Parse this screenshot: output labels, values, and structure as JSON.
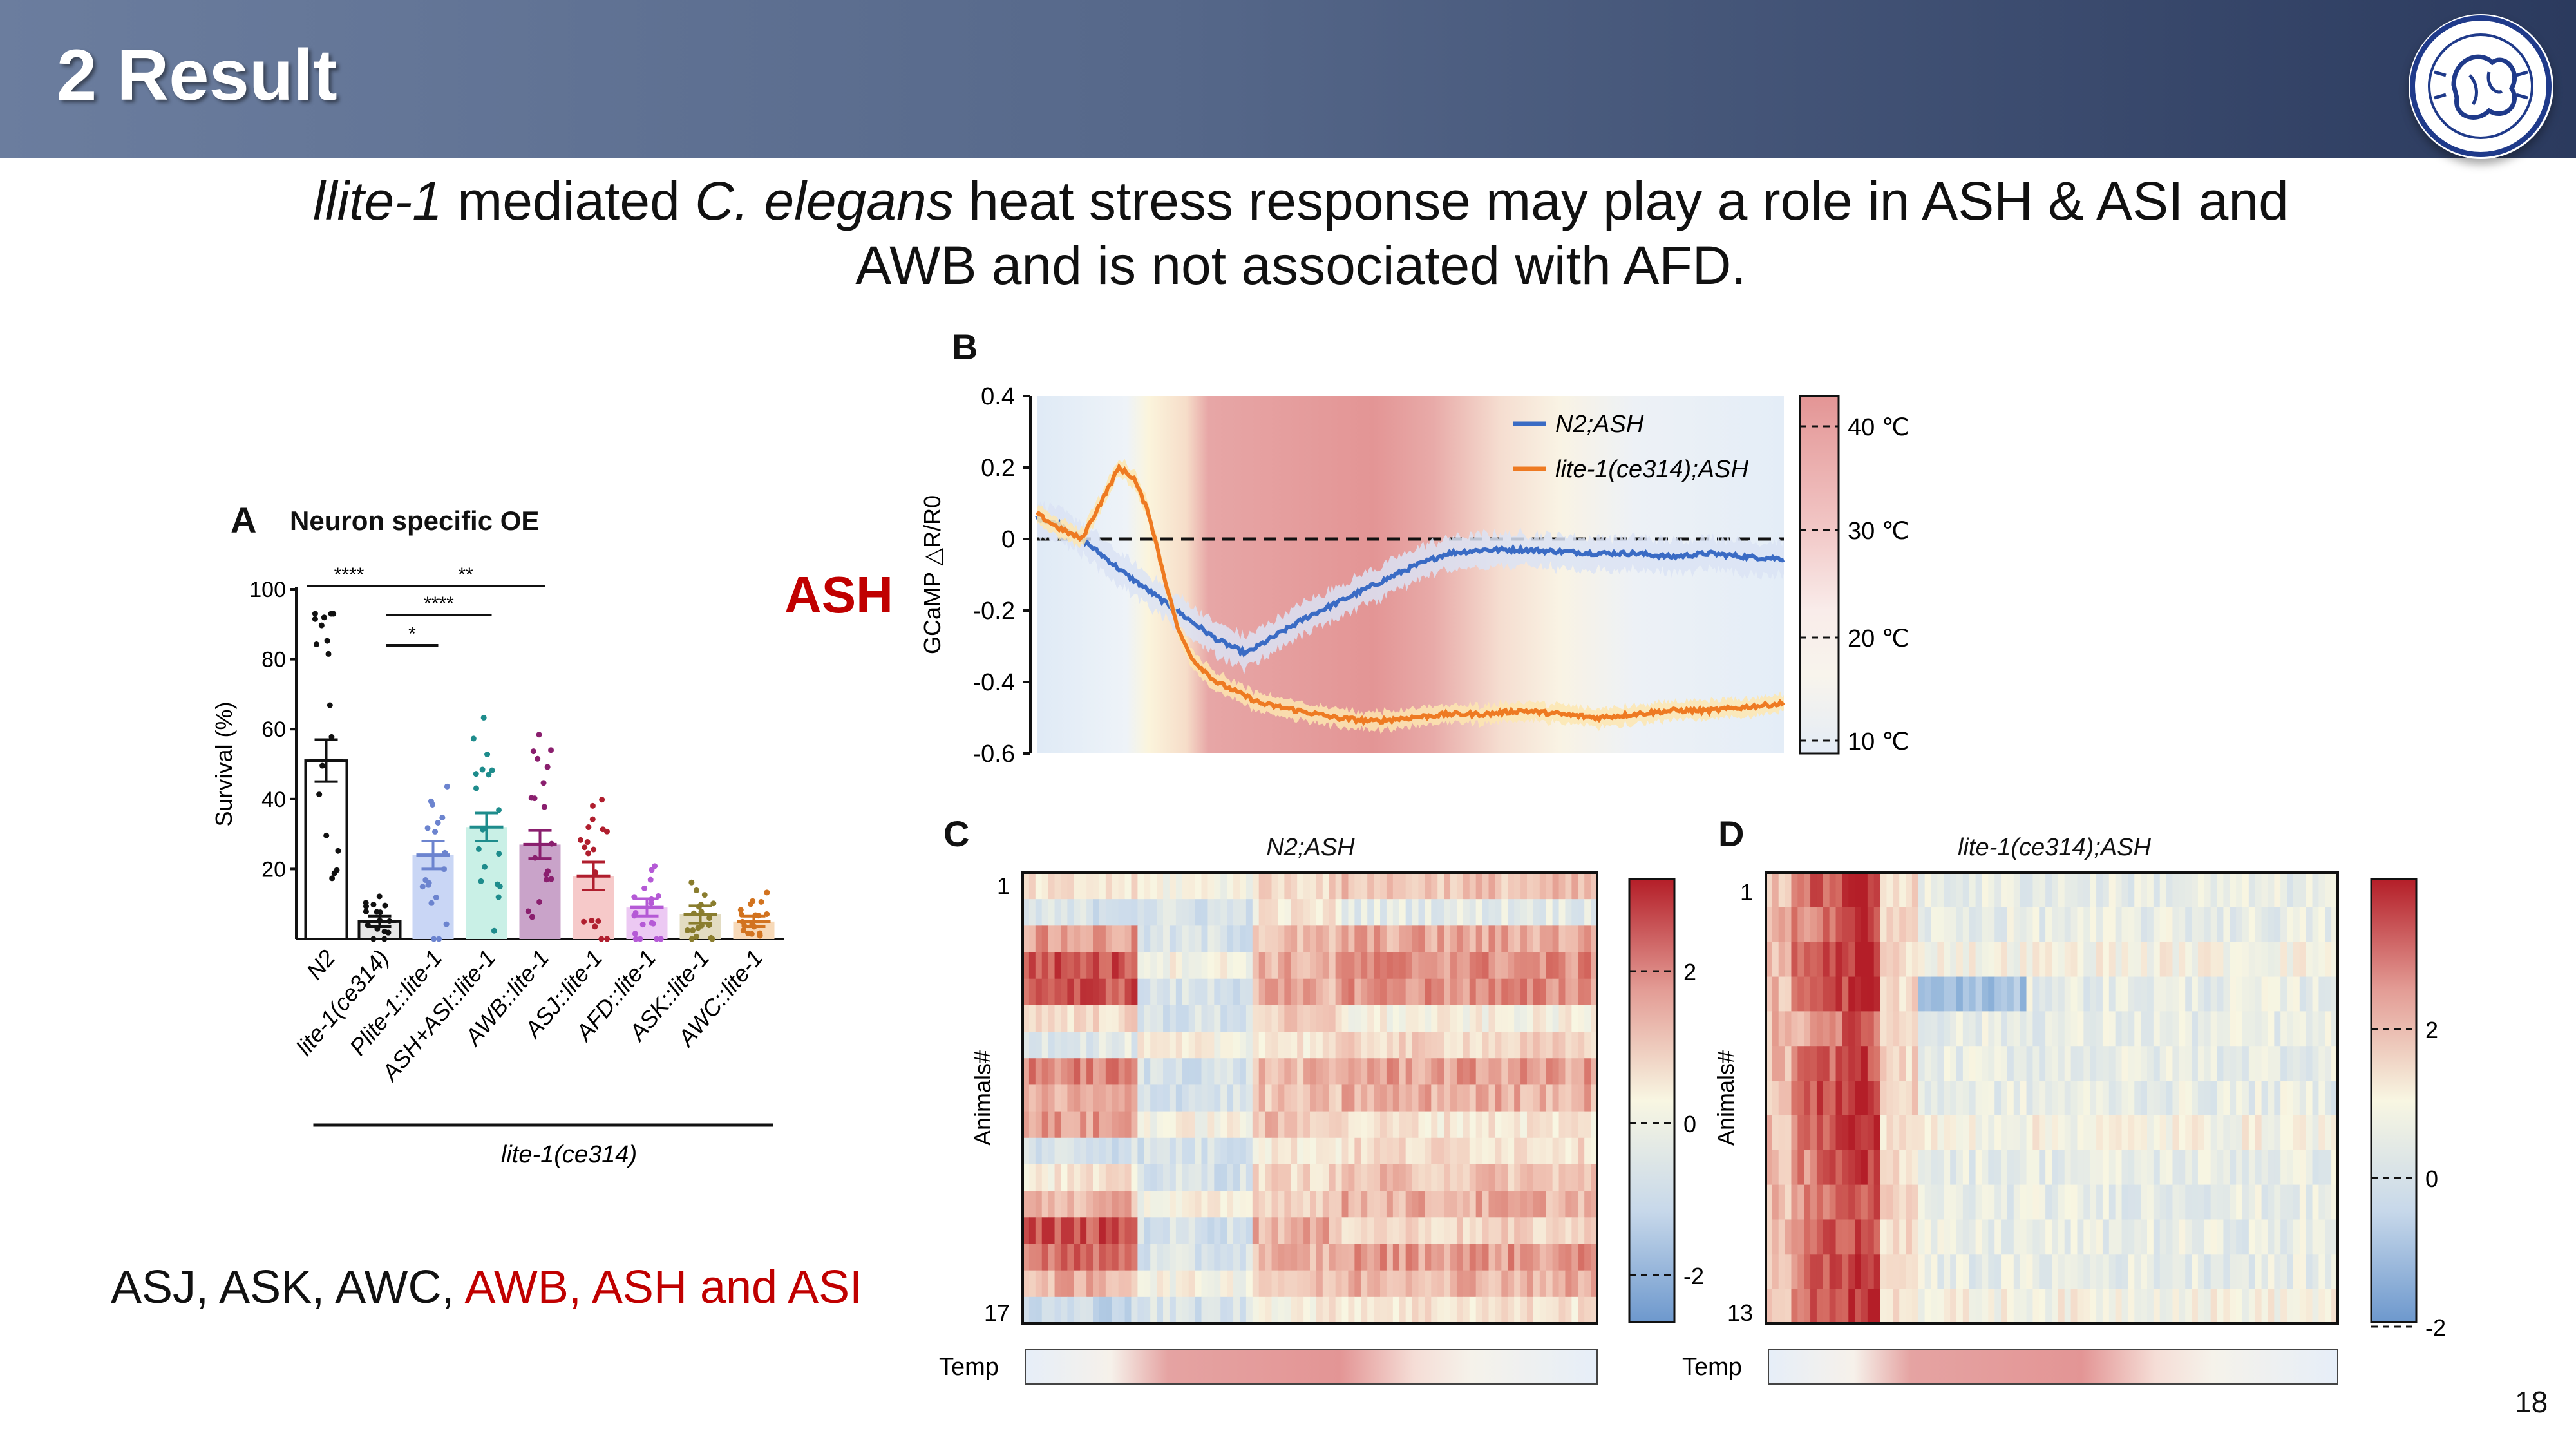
{
  "header": {
    "title": "2 Result"
  },
  "subtitle": {
    "part1": "llite-1",
    "part2": " mediated ",
    "part3": "C. elegans",
    "part4": " heat stress response may play a role in ASH & ASI and",
    "line2": "AWB and is not associated with AFD."
  },
  "side_label": "ASH",
  "bottom_note": {
    "black": "ASJ, ASK, AWC, ",
    "red": "AWB, ASH and ASI"
  },
  "page_number": "18",
  "colors": {
    "header_dark": "#2b3a5e",
    "header_light": "#6b7d9e",
    "red_text": "#c00000",
    "n2_blue": "#3a6bc4",
    "lite_orange": "#ee7a22"
  },
  "chart_data": [
    {
      "panel": "A",
      "type": "bar",
      "title": "Neuron specific OE",
      "ylabel": "Survival (%)",
      "ylim": [
        0,
        100
      ],
      "yticks": [
        "20",
        "40",
        "60",
        "80",
        "100"
      ],
      "categories": [
        "N2",
        "lite-1(ce314)",
        "Plite-1::lite-1",
        "ASH+ASI::lite-1",
        "AWB::lite-1",
        "ASJ::lite-1",
        "AFD::lite-1",
        "ASK::lite-1",
        "AWC::lite-1"
      ],
      "values": [
        51,
        5,
        24,
        32,
        27,
        18,
        9,
        7,
        5
      ],
      "errors": [
        6,
        1.5,
        4,
        4,
        4,
        4,
        2.5,
        2.5,
        1.5
      ],
      "bar_colors": [
        "#ffffff",
        "#e6e6e6",
        "#c9d6f5",
        "#c9f0e6",
        "#c9a3c9",
        "#f6c9c9",
        "#ecc9f3",
        "#e3dcc2",
        "#f7d9b8"
      ],
      "point_colors": [
        "#111111",
        "#111111",
        "#6c84cf",
        "#1e8c8c",
        "#8a1f6e",
        "#b01e2e",
        "#b55ad6",
        "#8a7d2e",
        "#d2731f"
      ],
      "group_label": "lite-1(ce314)",
      "significance": [
        {
          "from": "N2",
          "to": "lite-1(ce314)",
          "label": "****"
        },
        {
          "from": "lite-1(ce314)",
          "to": "AWB::lite-1",
          "label": "**"
        },
        {
          "from": "lite-1(ce314)",
          "to": "ASH+ASI::lite-1",
          "label": "****"
        },
        {
          "from": "lite-1(ce314)",
          "to": "Plite-1::lite-1",
          "label": "*"
        }
      ]
    },
    {
      "panel": "B",
      "type": "line",
      "ylabel": "GCaMP △R/R0",
      "ylim": [
        -0.6,
        0.4
      ],
      "yticks": [
        "-0.6",
        "-0.4",
        "-0.2",
        "0",
        "0.2",
        "0.4"
      ],
      "series": [
        {
          "name": "N2;ASH",
          "color": "#3a6bc4",
          "x": [
            0,
            3,
            6,
            9,
            12,
            16,
            20,
            24,
            28,
            32,
            36,
            40,
            45,
            50,
            55,
            60,
            65,
            70,
            75,
            80,
            85,
            90,
            95,
            100
          ],
          "values": [
            0.06,
            0.04,
            0.0,
            -0.05,
            -0.1,
            -0.16,
            -0.22,
            -0.28,
            -0.32,
            -0.27,
            -0.22,
            -0.18,
            -0.13,
            -0.08,
            -0.04,
            -0.03,
            -0.03,
            -0.035,
            -0.04,
            -0.04,
            -0.05,
            -0.04,
            -0.05,
            -0.055
          ]
        },
        {
          "name": "lite-1(ce314);ASH",
          "color": "#ee7a22",
          "x": [
            0,
            3,
            6,
            9,
            11,
            13,
            15,
            17,
            19,
            21,
            24,
            27,
            30,
            35,
            40,
            45,
            50,
            55,
            60,
            65,
            70,
            75,
            80,
            85,
            90,
            95,
            100
          ],
          "values": [
            0.07,
            0.03,
            0.0,
            0.12,
            0.2,
            0.17,
            0.07,
            -0.1,
            -0.26,
            -0.34,
            -0.4,
            -0.43,
            -0.46,
            -0.48,
            -0.5,
            -0.51,
            -0.5,
            -0.49,
            -0.49,
            -0.48,
            -0.49,
            -0.5,
            -0.49,
            -0.48,
            -0.48,
            -0.47,
            -0.46
          ]
        }
      ],
      "colorbar": {
        "label": "Temp",
        "ticks": [
          "40 ℃",
          "30 ℃",
          "20 ℃",
          "10 ℃"
        ]
      }
    },
    {
      "panel": "C",
      "type": "heatmap",
      "title": "N2;ASH",
      "ylabel": "Animals#",
      "row_labels": [
        "1",
        "17"
      ],
      "rows": 17,
      "colorbar_ticks": [
        "2",
        "0",
        "-2"
      ],
      "temp_label": "Temp"
    },
    {
      "panel": "D",
      "type": "heatmap",
      "title": "lite-1(ce314);ASH",
      "ylabel": "Animals#",
      "row_labels": [
        "1",
        "13"
      ],
      "rows": 13,
      "colorbar_ticks": [
        "2",
        "0",
        "-2"
      ],
      "temp_label": "Temp"
    }
  ]
}
